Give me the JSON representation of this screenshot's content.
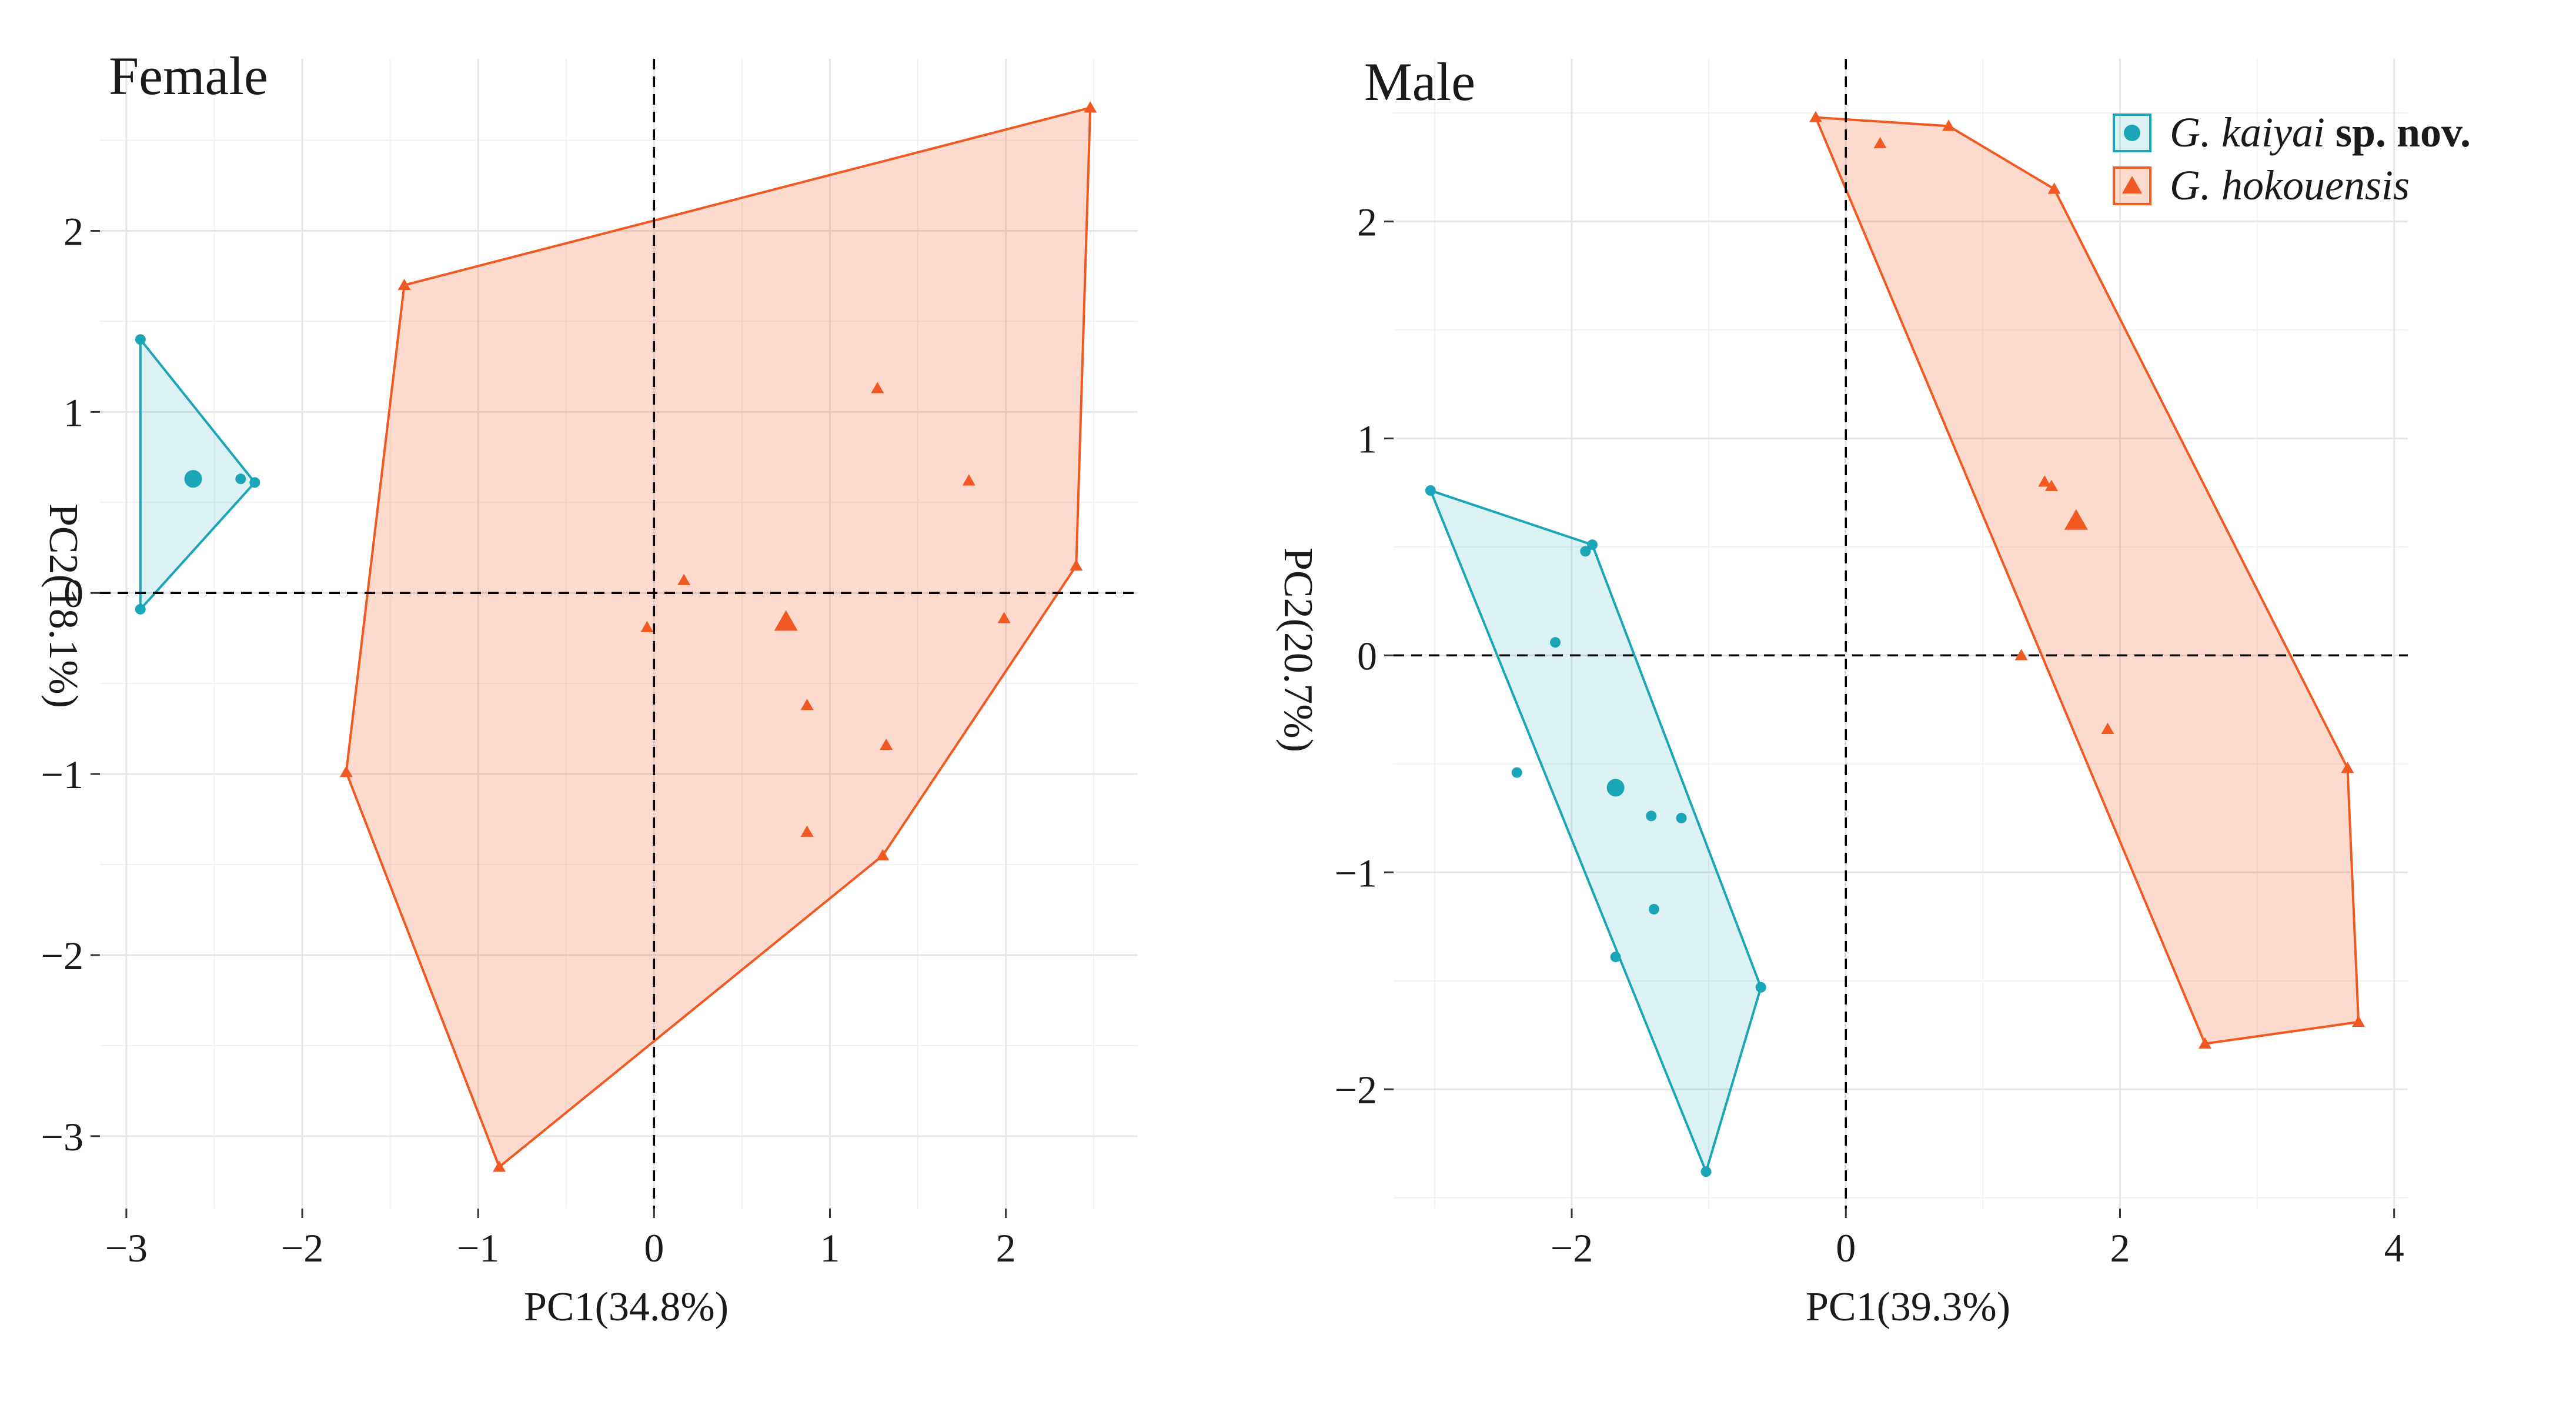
{
  "chart_data": [
    {
      "type": "scatter",
      "title": "Female",
      "xlabel": "PC1(34.8%)",
      "ylabel": "PC2(18.1%)",
      "xlim": [
        -3.15,
        2.75
      ],
      "ylim": [
        -3.4,
        2.95
      ],
      "xticks": [
        -3,
        -2,
        -1,
        0,
        1,
        2
      ],
      "yticks": [
        -3,
        -2,
        -1,
        0,
        1,
        2
      ],
      "xtick_labels": [
        "−3",
        "−2",
        "−1",
        "0",
        "1",
        "2"
      ],
      "ytick_labels": [
        "−3",
        "−2",
        "−1",
        "0",
        "1",
        "2"
      ],
      "series": [
        {
          "name": "G. kaiyai sp. nov.",
          "color": "#1aa6b7",
          "marker": "circle",
          "points": [
            [
              -2.92,
              1.4
            ],
            [
              -2.92,
              -0.09
            ],
            [
              -2.35,
              0.63
            ],
            [
              -2.27,
              0.61
            ]
          ],
          "hull": [
            [
              -2.92,
              1.4
            ],
            [
              -2.27,
              0.61
            ],
            [
              -2.92,
              -0.09
            ]
          ],
          "centroid": [
            -2.62,
            0.63
          ]
        },
        {
          "name": "G. hokouensis",
          "color": "#f05a22",
          "marker": "triangle",
          "points": [
            [
              -1.42,
              1.7
            ],
            [
              2.48,
              2.68
            ],
            [
              2.4,
              0.15
            ],
            [
              1.3,
              -1.45
            ],
            [
              -0.88,
              -3.17
            ],
            [
              -1.75,
              -0.99
            ],
            [
              1.27,
              1.13
            ],
            [
              1.79,
              0.62
            ],
            [
              0.17,
              0.07
            ],
            [
              -0.04,
              -0.19
            ],
            [
              1.99,
              -0.14
            ],
            [
              0.87,
              -0.62
            ],
            [
              1.32,
              -0.84
            ],
            [
              0.87,
              -1.32
            ]
          ],
          "hull": [
            [
              -1.42,
              1.7
            ],
            [
              2.48,
              2.68
            ],
            [
              2.4,
              0.15
            ],
            [
              1.3,
              -1.45
            ],
            [
              -0.88,
              -3.17
            ],
            [
              -1.75,
              -0.99
            ]
          ],
          "centroid": [
            0.75,
            -0.16
          ]
        }
      ]
    },
    {
      "type": "scatter",
      "title": "Male",
      "xlabel": "PC1(39.3%)",
      "ylabel": "PC2(20.7%)",
      "xlim": [
        -3.3,
        4.1
      ],
      "ylim": [
        -2.55,
        2.75
      ],
      "xticks": [
        -2,
        0,
        2,
        4
      ],
      "yticks": [
        -2,
        -1,
        0,
        1,
        2
      ],
      "xtick_labels": [
        "−2",
        "0",
        "2",
        "4"
      ],
      "ytick_labels": [
        "−2",
        "−1",
        "0",
        "1",
        "2"
      ],
      "series": [
        {
          "name": "G. kaiyai sp. nov.",
          "color": "#1aa6b7",
          "marker": "circle",
          "points": [
            [
              -3.03,
              0.76
            ],
            [
              -1.85,
              0.51
            ],
            [
              -1.9,
              0.48
            ],
            [
              -2.12,
              0.06
            ],
            [
              -2.4,
              -0.54
            ],
            [
              -1.42,
              -0.74
            ],
            [
              -1.2,
              -0.75
            ],
            [
              -1.4,
              -1.17
            ],
            [
              -1.68,
              -1.39
            ],
            [
              -0.62,
              -1.53
            ],
            [
              -1.02,
              -2.38
            ]
          ],
          "hull": [
            [
              -3.03,
              0.76
            ],
            [
              -1.85,
              0.51
            ],
            [
              -0.62,
              -1.53
            ],
            [
              -1.02,
              -2.38
            ]
          ],
          "centroid": [
            -1.68,
            -0.61
          ]
        },
        {
          "name": "G. hokouensis",
          "color": "#f05a22",
          "marker": "triangle",
          "points": [
            [
              -0.22,
              2.48
            ],
            [
              0.75,
              2.44
            ],
            [
              1.52,
              2.15
            ],
            [
              3.66,
              -0.52
            ],
            [
              3.74,
              -1.69
            ],
            [
              2.62,
              -1.79
            ],
            [
              0.25,
              2.36
            ],
            [
              1.45,
              0.8
            ],
            [
              1.5,
              0.78
            ],
            [
              1.28,
              0.0
            ],
            [
              1.91,
              -0.34
            ]
          ],
          "hull": [
            [
              -0.22,
              2.48
            ],
            [
              0.75,
              2.44
            ],
            [
              1.52,
              2.15
            ],
            [
              3.66,
              -0.52
            ],
            [
              3.74,
              -1.69
            ],
            [
              2.62,
              -1.79
            ]
          ],
          "centroid": [
            1.68,
            0.62
          ]
        }
      ]
    }
  ],
  "legend": {
    "items": [
      {
        "genus": "G.",
        "species": "kaiyai",
        "suffix": "sp. nov.",
        "color": "#1aa6b7",
        "marker": "circle"
      },
      {
        "genus": "G.",
        "species": "hokouensis",
        "suffix": "",
        "color": "#f05a22",
        "marker": "triangle"
      }
    ]
  }
}
